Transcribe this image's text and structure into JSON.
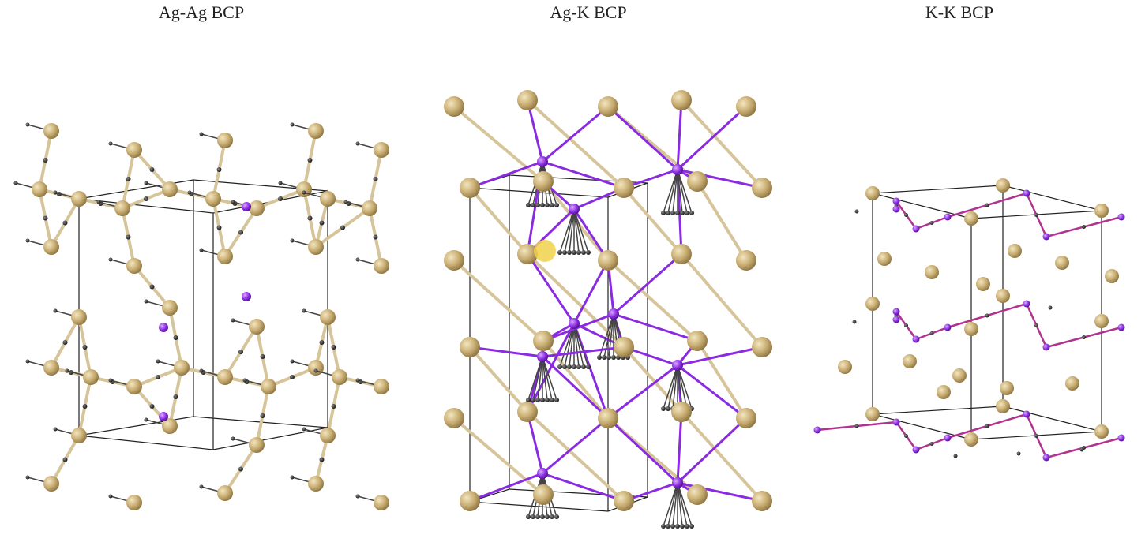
{
  "panels": [
    {
      "title": "Ag-Ag BCP"
    },
    {
      "title": "Ag-K BCP"
    },
    {
      "title": "K-K BCP"
    }
  ]
}
